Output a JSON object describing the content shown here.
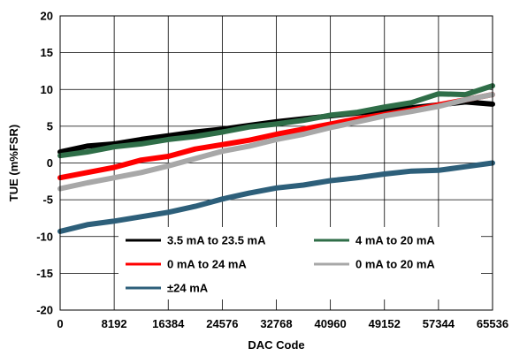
{
  "chart_data": {
    "type": "line",
    "xlabel": "DAC Code",
    "ylabel": "TUE (m%FSR)",
    "xlim": [
      0,
      65536
    ],
    "ylim": [
      -20,
      20
    ],
    "xticks": [
      0,
      8192,
      16384,
      24576,
      32768,
      40960,
      49152,
      57344,
      65536
    ],
    "yticks": [
      -20,
      -15,
      -10,
      -5,
      0,
      5,
      10,
      15,
      20
    ],
    "grid": true,
    "legend_position": "bottom-right",
    "series": [
      {
        "name": "3.5 mA to 23.5 mA",
        "color": "#000000",
        "x": [
          0,
          4096,
          8192,
          12288,
          16384,
          20480,
          24576,
          28672,
          32768,
          36864,
          40960,
          45056,
          49152,
          53248,
          57344,
          61440,
          65536
        ],
        "y": [
          1.5,
          2.3,
          2.6,
          3.2,
          3.7,
          4.2,
          4.6,
          5.1,
          5.6,
          6.0,
          6.4,
          6.8,
          7.1,
          7.5,
          7.9,
          8.3,
          8.0
        ]
      },
      {
        "name": "4 mA to 20 mA",
        "color": "#2f6e48",
        "x": [
          0,
          4096,
          8192,
          12288,
          16384,
          20480,
          24576,
          28672,
          32768,
          36864,
          40960,
          45056,
          49152,
          53248,
          57344,
          61440,
          65536
        ],
        "y": [
          1.0,
          1.5,
          2.2,
          2.6,
          3.2,
          3.6,
          4.2,
          4.9,
          5.3,
          5.8,
          6.5,
          6.9,
          7.6,
          8.2,
          9.4,
          9.3,
          10.5
        ]
      },
      {
        "name": "0 mA to 24 mA",
        "color": "#ff0000",
        "x": [
          0,
          4096,
          8192,
          12288,
          16384,
          20480,
          24576,
          28672,
          32768,
          36864,
          40960,
          45056,
          49152,
          53248,
          57344,
          61440,
          65536
        ],
        "y": [
          -2.0,
          -1.3,
          -0.6,
          0.4,
          0.9,
          1.9,
          2.5,
          3.1,
          3.9,
          4.6,
          5.3,
          6.0,
          6.6,
          7.2,
          7.9,
          8.6,
          9.3
        ]
      },
      {
        "name": "0 mA to 20 mA",
        "color": "#a8a8a8",
        "x": [
          0,
          4096,
          8192,
          12288,
          16384,
          20480,
          24576,
          28672,
          32768,
          36864,
          40960,
          45056,
          49152,
          53248,
          57344,
          61440,
          65536
        ],
        "y": [
          -3.5,
          -2.7,
          -2.0,
          -1.3,
          -0.4,
          0.6,
          1.6,
          2.3,
          3.2,
          3.9,
          4.8,
          5.6,
          6.4,
          7.0,
          7.7,
          8.6,
          9.3
        ]
      },
      {
        "name": "±24 mA",
        "color": "#2d5f7a",
        "x": [
          0,
          4096,
          8192,
          12288,
          16384,
          20480,
          24576,
          28672,
          32768,
          36864,
          40960,
          45056,
          49152,
          53248,
          57344,
          61440,
          65536
        ],
        "y": [
          -9.3,
          -8.4,
          -7.9,
          -7.3,
          -6.7,
          -5.9,
          -4.9,
          -4.1,
          -3.4,
          -3.0,
          -2.4,
          -2.0,
          -1.5,
          -1.1,
          -1.0,
          -0.5,
          0.0
        ]
      }
    ]
  }
}
